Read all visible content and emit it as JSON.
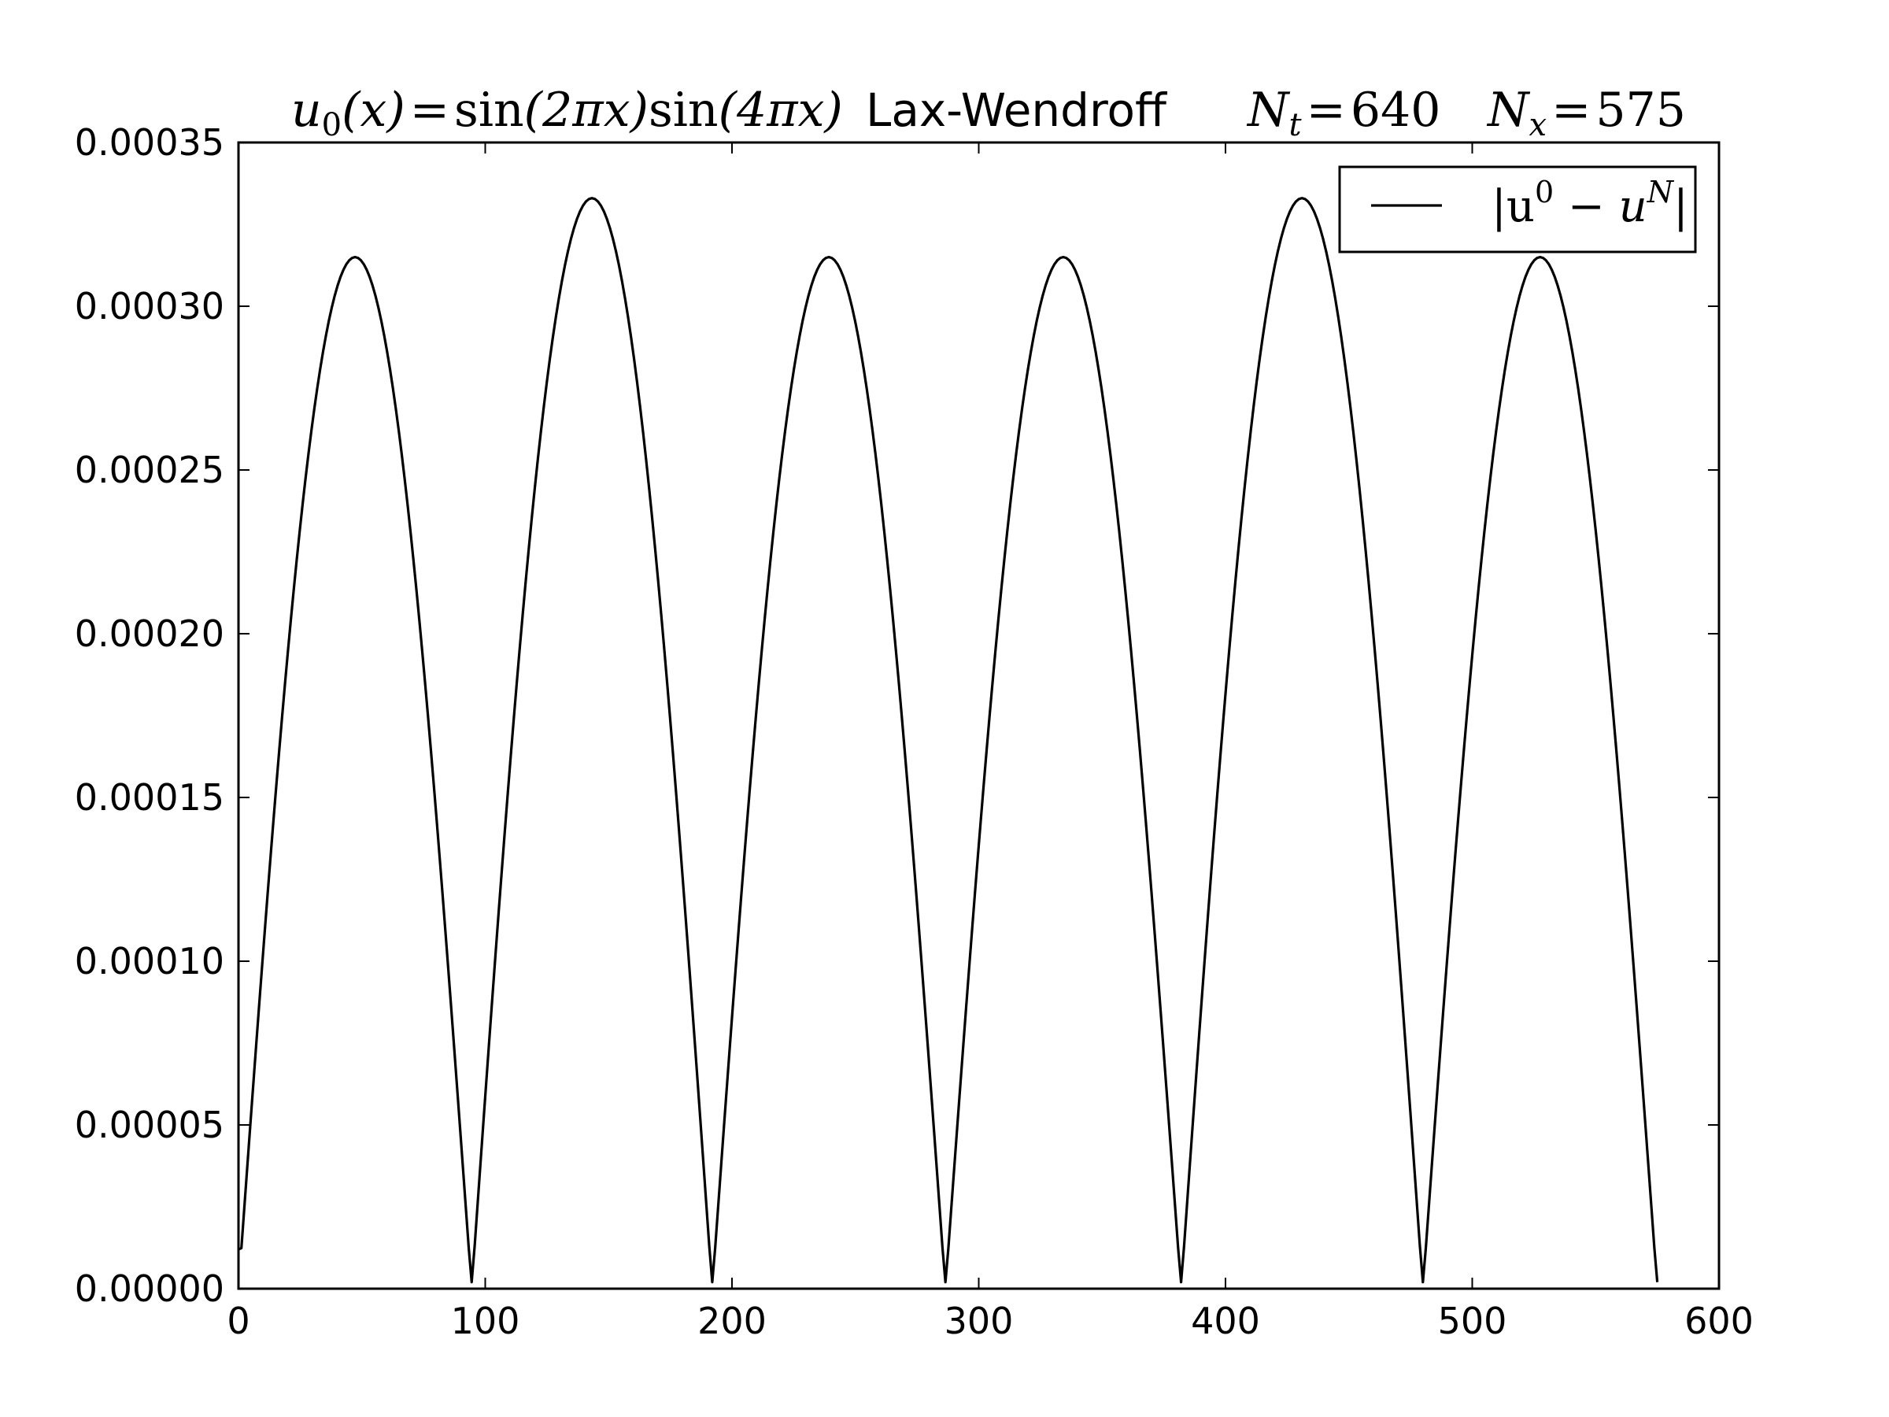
{
  "chart_data": {
    "type": "line",
    "title": {
      "formula": {
        "u": "u",
        "sub0": "0",
        "paren_x": "(x)",
        "eq": "=",
        "sin1": "sin",
        "arg1": "(2πx)",
        "sin2": "sin",
        "arg2": "(4πx)"
      },
      "method": "Lax-Wendroff",
      "nt": {
        "symbol": "N",
        "sub": "t",
        "eq": "=",
        "value": "640"
      },
      "nx": {
        "symbol": "N",
        "sub": "x",
        "eq": "=",
        "value": "575"
      }
    },
    "xlabel": "",
    "ylabel": "",
    "xlim": [
      0,
      600
    ],
    "ylim": [
      0,
      0.00035
    ],
    "xticks": [
      "0",
      "100",
      "200",
      "300",
      "400",
      "500",
      "600"
    ],
    "yticks": [
      "0.00000",
      "0.00005",
      "0.00010",
      "0.00015",
      "0.00020",
      "0.00025",
      "0.00030",
      "0.00035"
    ],
    "grid": false,
    "legend_position": "top-right",
    "series": [
      {
        "name": "|u⁰ − uᴺ|",
        "legend": {
          "open": "|u",
          "sup0": "0",
          "minus": " − u",
          "supN": "N",
          "close": "|"
        },
        "color": "#000000",
        "lobe_model": {
          "zeros": [
            0,
            94.5,
            192,
            286.5,
            382,
            480,
            575
          ],
          "peaks": [
            0.000315,
            0.000333,
            0.000315,
            0.000315,
            0.000333,
            0.000315
          ],
          "start_value": 1.2e-05,
          "end_value": 2e-06,
          "min_value": 2e-06
        }
      }
    ]
  }
}
